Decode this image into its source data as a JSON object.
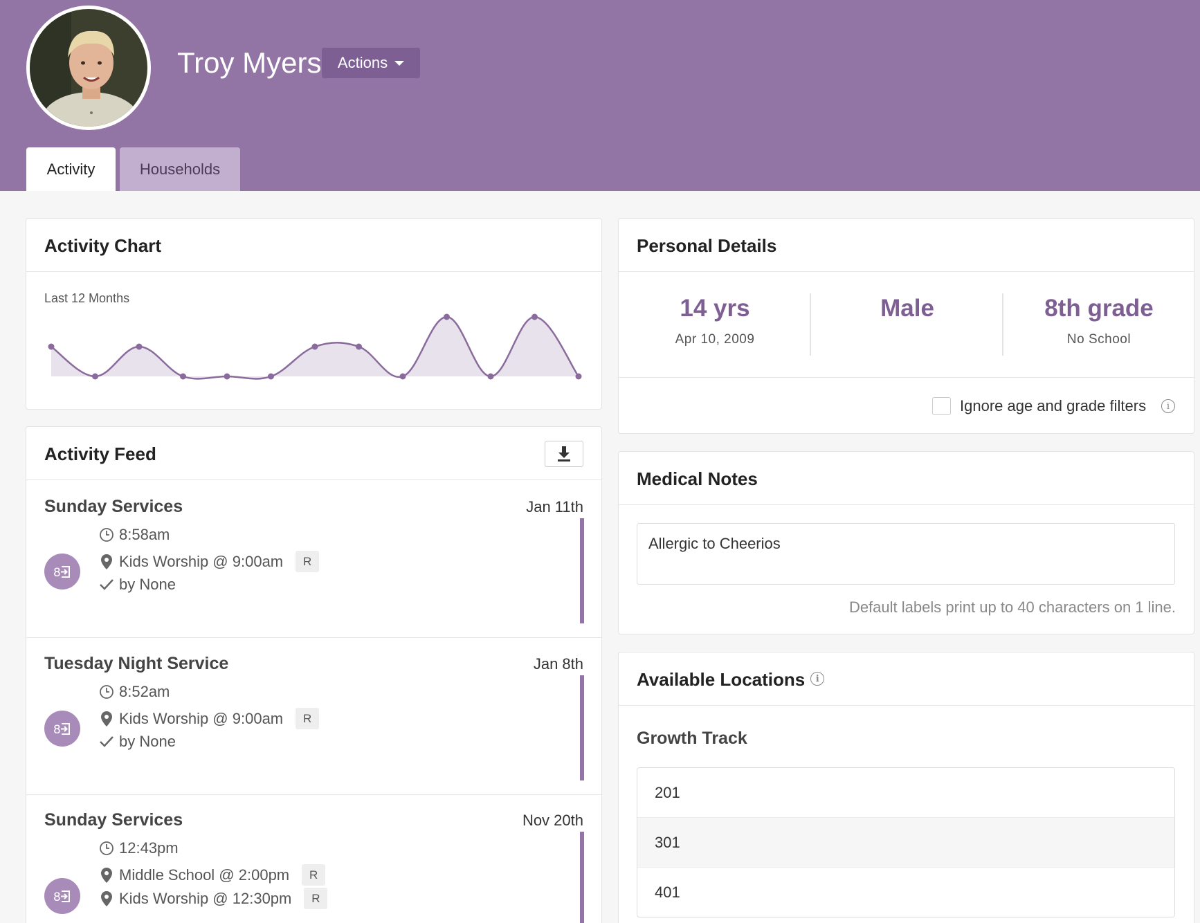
{
  "profile": {
    "name": "Troy Myers",
    "actions_label": "Actions"
  },
  "tabs": [
    {
      "label": "Activity",
      "active": true
    },
    {
      "label": "Households",
      "active": false
    }
  ],
  "activity_chart": {
    "title": "Activity Chart",
    "subtitle": "Last 12 Months",
    "color": "#8a6b9c",
    "chart_data": {
      "type": "area",
      "values": [
        1,
        0,
        1,
        0,
        0,
        0,
        1,
        1,
        0,
        2,
        0,
        2,
        0
      ],
      "ylim": [
        0,
        2
      ]
    }
  },
  "activity_feed": {
    "title": "Activity Feed",
    "items": [
      {
        "title": "Sunday Services",
        "date": "Jan 11th",
        "time": "8:58am",
        "locations": [
          {
            "text": "Kids Worship @ 9:00am",
            "badge": "R"
          }
        ],
        "by": "by None"
      },
      {
        "title": "Tuesday Night Service",
        "date": "Jan 8th",
        "time": "8:52am",
        "locations": [
          {
            "text": "Kids Worship @ 9:00am",
            "badge": "R"
          }
        ],
        "by": "by None"
      },
      {
        "title": "Sunday Services",
        "date": "Nov 20th",
        "time": "12:43pm",
        "locations": [
          {
            "text": "Middle School @ 2:00pm",
            "badge": "R"
          },
          {
            "text": "Kids Worship @ 12:30pm",
            "badge": "R"
          }
        ]
      }
    ]
  },
  "personal_details": {
    "title": "Personal Details",
    "age": "14 yrs",
    "birthdate": "Apr 10, 2009",
    "gender": "Male",
    "grade": "8th grade",
    "school": "No School",
    "ignore_filters_label": "Ignore age and grade filters",
    "ignore_filters_checked": false
  },
  "medical_notes": {
    "title": "Medical Notes",
    "value": "Allergic to Cheerios",
    "hint": "Default labels print up to 40 characters on 1 line."
  },
  "available_locations": {
    "title": "Available Locations",
    "group": "Growth Track",
    "items": [
      "201",
      "301",
      "401"
    ]
  },
  "colors": {
    "header": "#9375a5",
    "accent": "#7d5f94",
    "tab_inactive": "#c2afcf"
  }
}
